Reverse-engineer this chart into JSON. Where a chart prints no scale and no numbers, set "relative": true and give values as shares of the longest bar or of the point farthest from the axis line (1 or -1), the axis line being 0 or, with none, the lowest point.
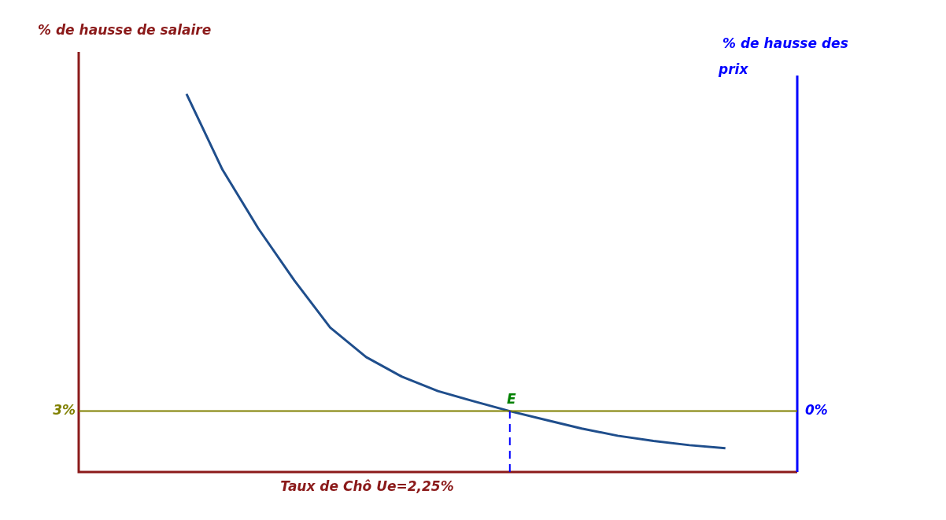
{
  "chart_data": {
    "type": "line",
    "relative": true,
    "xlabel": "Taux de Chô Ue=2,25%",
    "ylabel": "% de hausse de salaire",
    "y2label": "% de hausse des prix",
    "tick_labels": false,
    "legend": false,
    "marker": "none",
    "line_style": "solid",
    "categories": [
      null,
      null,
      null,
      null,
      null,
      null,
      null,
      null,
      null,
      null,
      null,
      null,
      null,
      null,
      null,
      null,
      null,
      null,
      null,
      null,
      null
    ],
    "series": [
      {
        "color": "#1f4e8c",
        "values": [
          null,
          null,
          null,
          1,
          0.8,
          0.644,
          0.507,
          0.382,
          0.304,
          0.252,
          0.214,
          0.187,
          0.161,
          0.138,
          0.115,
          0.096,
          0.082,
          0.071,
          0.063,
          null,
          null
        ]
      }
    ],
    "ref_lines": [
      {
        "axis": "y",
        "value": 0.161,
        "label": null,
        "color": "#808000",
        "line_style": "solid"
      }
    ],
    "annotations": [
      "3%",
      "0%",
      {
        "text": "E",
        "y": 0.161
      }
    ]
  }
}
